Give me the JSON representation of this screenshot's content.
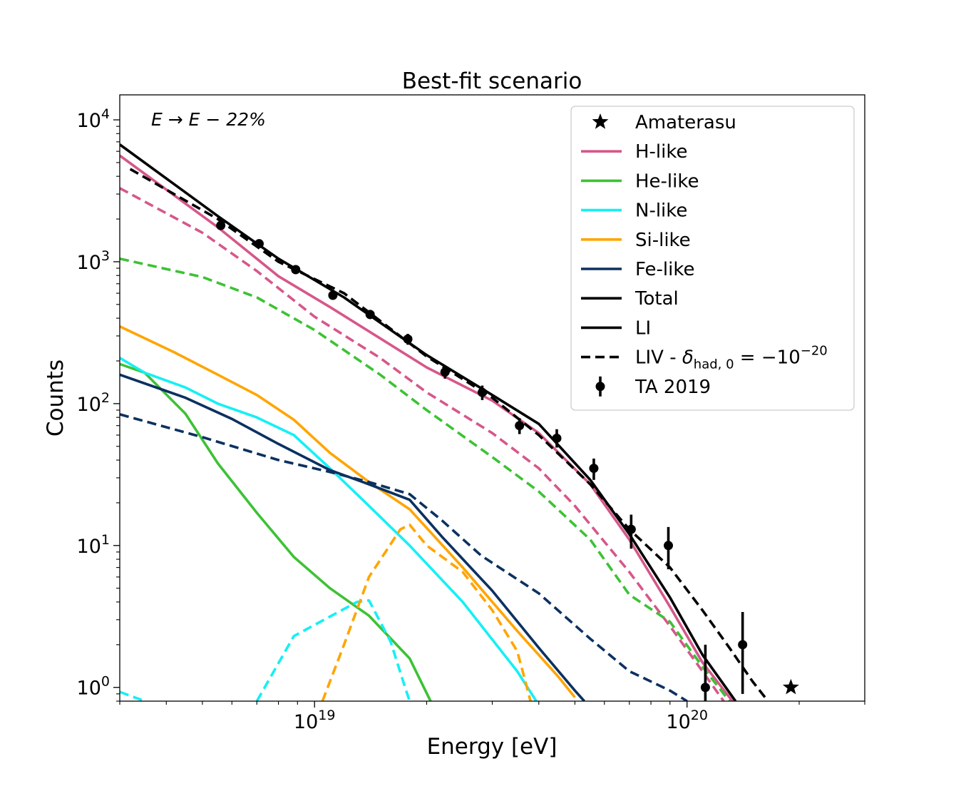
{
  "chart_data": {
    "type": "line",
    "title": "Best-fit scenario",
    "xlabel": "Energy [eV]",
    "ylabel": "Counts",
    "xscale": "log",
    "yscale": "log",
    "xlim": [
      3e+18,
      3e+20
    ],
    "ylim": [
      0.8,
      15000
    ],
    "grid": false,
    "legend_position": "top-right",
    "x_ticks": [
      {
        "value": 1e+19,
        "base": "10",
        "exp": "19"
      },
      {
        "value": 1e+20,
        "base": "10",
        "exp": "20"
      }
    ],
    "y_ticks": [
      {
        "value": 1,
        "base": "10",
        "exp": "0"
      },
      {
        "value": 10,
        "base": "10",
        "exp": "1"
      },
      {
        "value": 100,
        "base": "10",
        "exp": "2"
      },
      {
        "value": 1000,
        "base": "10",
        "exp": "3"
      },
      {
        "value": 10000,
        "base": "10",
        "exp": "4"
      }
    ],
    "annotation": {
      "text": "E → E − 22%"
    },
    "legend": [
      {
        "label": "Amaterasu",
        "marker": "star",
        "color": "#000000"
      },
      {
        "label": "H-like",
        "marker": "line",
        "color": "#d6578a"
      },
      {
        "label": "He-like",
        "marker": "line",
        "color": "#3cc234"
      },
      {
        "label": "N-like",
        "marker": "line",
        "color": "#14f0f5"
      },
      {
        "label": "Si-like",
        "marker": "line",
        "color": "#ffa500"
      },
      {
        "label": "Fe-like",
        "marker": "line",
        "color": "#0b3160"
      },
      {
        "label": "Total",
        "marker": "line",
        "color": "#000000"
      },
      {
        "label": "LI",
        "marker": "line",
        "color": "#000000"
      },
      {
        "label": "LIV - δhad,0 = −10−20",
        "label_parts": {
          "prefix": "LIV - ",
          "delta": "δ",
          "sub": "had, 0",
          "eq": " = −10",
          "sup": "−20"
        },
        "marker": "dashed",
        "color": "#000000"
      },
      {
        "label": "TA 2019",
        "marker": "errorbar",
        "color": "#000000"
      }
    ],
    "series": [
      {
        "name": "Total",
        "color": "#000000",
        "style": "solid",
        "x": [
          3e+18,
          5.5e+18,
          8e+18,
          1.2e+19,
          2e+19,
          3e+19,
          4e+19,
          5.5e+19,
          7e+19,
          9e+19,
          1.1e+20,
          1.35e+20
        ],
        "y": [
          6700,
          2100,
          1050,
          560,
          220,
          115,
          72,
          29,
          12,
          4.3,
          1.7,
          0.8
        ]
      },
      {
        "name": "H-like",
        "color": "#d6578a",
        "style": "solid",
        "x": [
          3e+18,
          5.5e+18,
          8e+18,
          1.1e+19,
          2e+19,
          3e+19,
          4e+19,
          5.5e+19,
          7e+19,
          9e+19,
          1.1e+20,
          1.35e+20
        ],
        "y": [
          5600,
          1750,
          790,
          480,
          180,
          105,
          62,
          27,
          11,
          3.7,
          1.5,
          0.75
        ]
      },
      {
        "name": "H-like LIV",
        "color": "#d6578a",
        "style": "dashed",
        "x": [
          3e+18,
          5e+18,
          7e+18,
          1e+19,
          1.5e+19,
          2e+19,
          3e+19,
          4e+19,
          5e+19,
          7e+19,
          9e+19,
          1.1e+20,
          1.3e+20
        ],
        "y": [
          3300,
          1600,
          860,
          410,
          210,
          120,
          62,
          35,
          19,
          6.5,
          2.7,
          1.3,
          0.7
        ]
      },
      {
        "name": "He-like",
        "color": "#3cc234",
        "style": "solid",
        "x": [
          3e+18,
          3.5e+18,
          4.5e+18,
          5.5e+18,
          7e+18,
          8.8e+18,
          1.1e+19,
          1.4e+19,
          1.8e+19,
          2.1e+19
        ],
        "y": [
          190,
          165,
          85,
          38,
          17,
          8.3,
          5,
          3.2,
          1.6,
          0.7
        ]
      },
      {
        "name": "He-like LIV",
        "color": "#3cc234",
        "style": "dashed",
        "x": [
          3e+18,
          5e+18,
          7e+18,
          1e+19,
          1.5e+19,
          2e+19,
          3e+19,
          4e+19,
          5.5e+19,
          7e+19,
          9e+19,
          1.1e+20,
          1.3e+20
        ],
        "y": [
          1050,
          780,
          560,
          330,
          160,
          90,
          42,
          24,
          11,
          4.5,
          2.9,
          1.4,
          0.8
        ]
      },
      {
        "name": "N-like",
        "color": "#14f0f5",
        "style": "solid",
        "x": [
          3e+18,
          3.5e+18,
          4.5e+18,
          5.5e+18,
          7e+18,
          8.8e+18,
          1.1e+19,
          1.4e+19,
          1.8e+19,
          2.5e+19,
          3.5e+19,
          4e+19
        ],
        "y": [
          210,
          165,
          130,
          100,
          80,
          60,
          35,
          19,
          10,
          4,
          1.3,
          0.75
        ]
      },
      {
        "name": "N-like LIV",
        "color": "#14f0f5",
        "style": "dashed",
        "x": [
          3e+18,
          3.5e+18
        ],
        "y": [
          0.93,
          0.8
        ]
      },
      {
        "name": "N-like LIV",
        "color": "#14f0f5",
        "style": "dashed",
        "x": [
          7e+18,
          8.8e+18,
          1.3e+19,
          1.4e+19,
          1.6e+19,
          1.75e+19,
          1.8e+19
        ],
        "y": [
          0.8,
          2.3,
          4,
          4.1,
          2.1,
          1,
          0.8
        ]
      },
      {
        "name": "Si-like",
        "color": "#ffa500",
        "style": "solid",
        "x": [
          3e+18,
          4.2e+18,
          5.5e+18,
          7e+18,
          8.8e+18,
          1.1e+19,
          1.4e+19,
          1.8e+19,
          2.5e+19,
          3.5e+19,
          4.5e+19,
          5e+19
        ],
        "y": [
          350,
          230,
          160,
          115,
          77,
          45,
          28,
          18,
          7,
          2.5,
          1.2,
          0.85
        ]
      },
      {
        "name": "Si-like LIV",
        "color": "#ffa500",
        "style": "dashed",
        "x": [
          1.05e+19,
          1.2e+19,
          1.4e+19,
          1.7e+19,
          1.8e+19,
          2e+19,
          2.5e+19,
          3e+19,
          3.5e+19,
          3.65e+19,
          3.8e+19
        ],
        "y": [
          0.8,
          2.0,
          6.0,
          13,
          14,
          10,
          6.5,
          3.5,
          1.8,
          1.2,
          0.8
        ]
      },
      {
        "name": "Fe-like",
        "color": "#0b3160",
        "style": "solid",
        "x": [
          3e+18,
          4.5e+18,
          6e+18,
          8e+18,
          1.1e+19,
          1.4e+19,
          1.8e+19,
          2.2e+19,
          3e+19,
          4e+19,
          5e+19,
          5.3e+19
        ],
        "y": [
          160,
          110,
          78,
          52,
          34,
          27,
          21,
          11.5,
          4.8,
          1.9,
          0.95,
          0.8
        ]
      },
      {
        "name": "Fe-like LIV",
        "color": "#0b3160",
        "style": "dashed",
        "x": [
          3e+18,
          5e+18,
          8e+18,
          1.1e+19,
          1.4e+19,
          1.8e+19,
          2.2e+19,
          2.8e+19,
          4e+19,
          5.5e+19,
          7e+19,
          9e+19,
          1e+20
        ],
        "y": [
          84,
          58,
          40,
          33,
          28,
          23,
          15,
          8.5,
          4.6,
          2.2,
          1.3,
          0.95,
          0.8
        ]
      },
      {
        "name": "LIV - δhad,0 = −10−20",
        "color": "#000000",
        "style": "dashed",
        "x": [
          3.2e+18,
          5.5e+18,
          8e+18,
          1.2e+19,
          2e+19,
          3e+19,
          4e+19,
          5.5e+19,
          7e+19,
          9e+19,
          1.1e+20,
          1.3e+20,
          1.5e+20,
          1.65e+20
        ],
        "y": [
          4500,
          2000,
          1000,
          600,
          215,
          110,
          60,
          27,
          13,
          7,
          3.5,
          1.9,
          1.1,
          0.8
        ]
      }
    ],
    "ta2019": {
      "name": "TA 2019",
      "points": [
        {
          "x": 5.6e+18,
          "y": 1800,
          "lo": 1700,
          "hi": 1900
        },
        {
          "x": 7.1e+18,
          "y": 1340,
          "lo": 1260,
          "hi": 1420
        },
        {
          "x": 8.9e+18,
          "y": 880,
          "lo": 820,
          "hi": 940
        },
        {
          "x": 1.12e+19,
          "y": 580,
          "lo": 540,
          "hi": 620
        },
        {
          "x": 1.41e+19,
          "y": 425,
          "lo": 395,
          "hi": 455
        },
        {
          "x": 1.78e+19,
          "y": 285,
          "lo": 260,
          "hi": 310
        },
        {
          "x": 2.24e+19,
          "y": 167,
          "lo": 150,
          "hi": 184
        },
        {
          "x": 2.82e+19,
          "y": 120,
          "lo": 106,
          "hi": 134
        },
        {
          "x": 3.55e+19,
          "y": 70,
          "lo": 61,
          "hi": 79
        },
        {
          "x": 4.47e+19,
          "y": 57,
          "lo": 49,
          "hi": 66
        },
        {
          "x": 5.62e+19,
          "y": 35,
          "lo": 29,
          "hi": 41
        },
        {
          "x": 7.08e+19,
          "y": 13,
          "lo": 9.5,
          "hi": 16.5
        },
        {
          "x": 8.91e+19,
          "y": 10,
          "lo": 6.8,
          "hi": 13.5
        },
        {
          "x": 1.12e+20,
          "y": 1,
          "lo": 0.5,
          "hi": 2.0
        },
        {
          "x": 1.41e+20,
          "y": 2,
          "lo": 0.9,
          "hi": 3.4
        }
      ]
    },
    "amaterasu": {
      "name": "Amaterasu",
      "x": 1.9e+20,
      "y": 1
    }
  }
}
